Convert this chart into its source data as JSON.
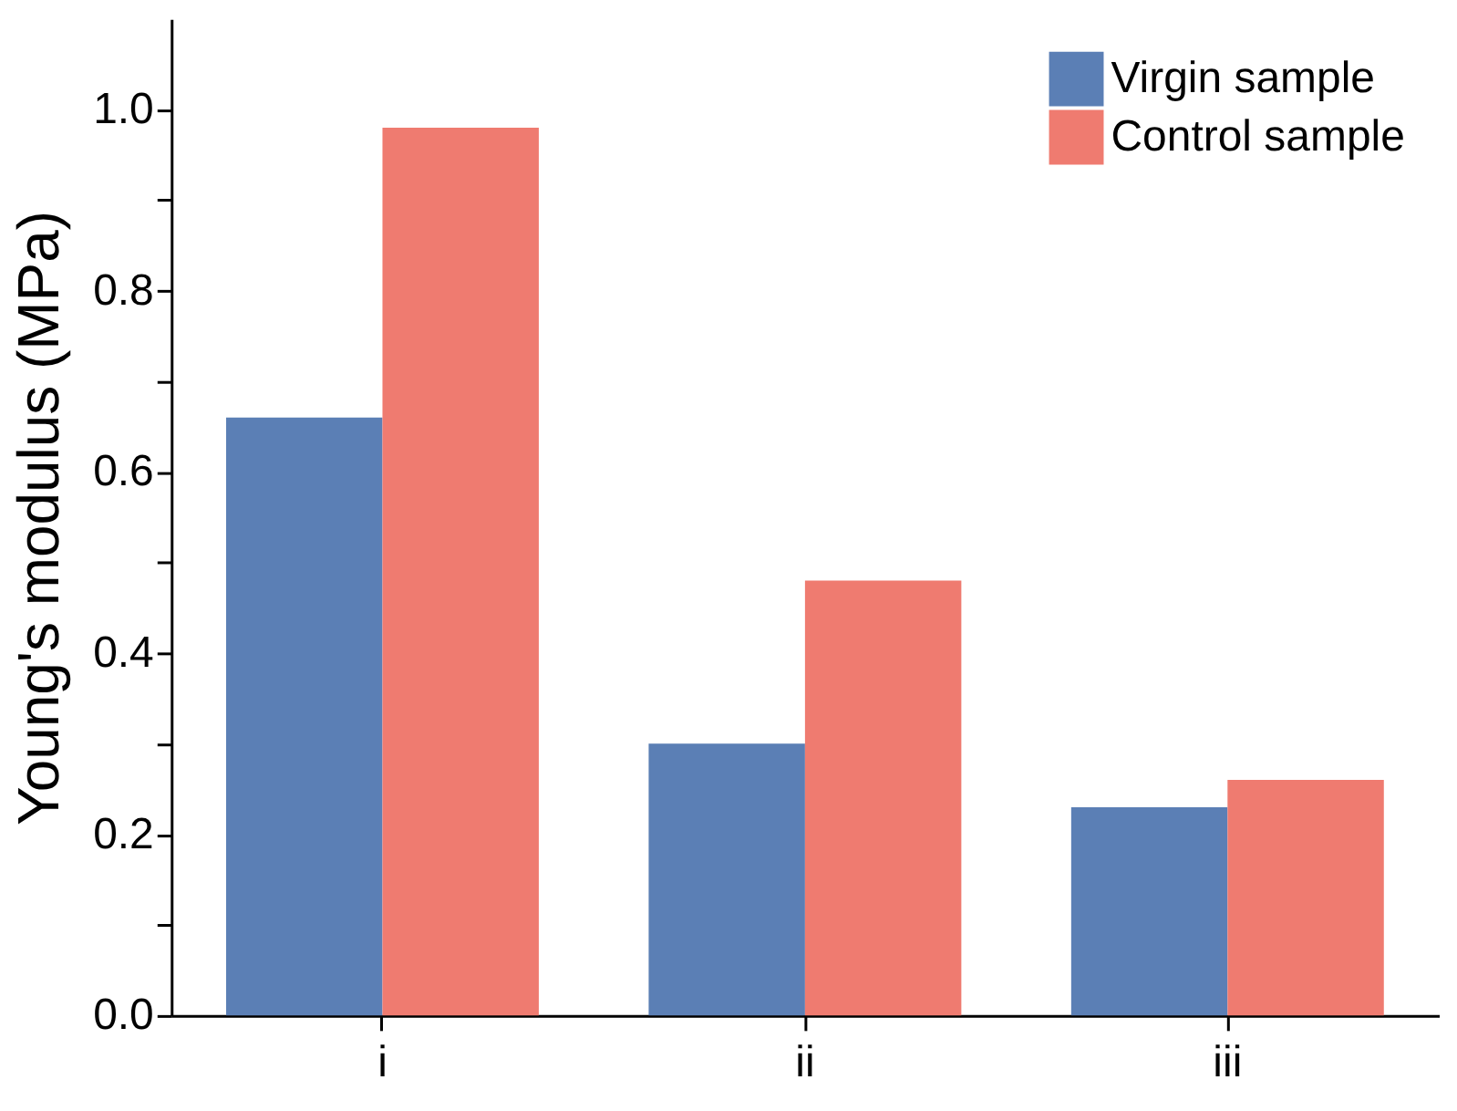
{
  "chart_data": {
    "type": "bar",
    "ylabel": "Young's modulus (MPa)",
    "categories": [
      "i",
      "ii",
      "iii"
    ],
    "series": [
      {
        "name": "Virgin sample",
        "color": "#5b7fb5",
        "values": [
          0.66,
          0.3,
          0.23
        ]
      },
      {
        "name": "Control sample",
        "color": "#ef7b70",
        "values": [
          0.98,
          0.48,
          0.26
        ]
      }
    ],
    "ylim": [
      0,
      1.1
    ],
    "yticks": [
      {
        "value": 0,
        "label": "0.0"
      },
      {
        "value": 0.1,
        "label": null
      },
      {
        "value": 0.2,
        "label": "0.2"
      },
      {
        "value": 0.3,
        "label": null
      },
      {
        "value": 0.4,
        "label": "0.4"
      },
      {
        "value": 0.5,
        "label": null
      },
      {
        "value": 0.6,
        "label": "0.6"
      },
      {
        "value": 0.7,
        "label": null
      },
      {
        "value": 0.8,
        "label": "0.8"
      },
      {
        "value": 0.9,
        "label": null
      },
      {
        "value": 1.0,
        "label": "1.0"
      }
    ],
    "legend": "top right",
    "grid": false
  }
}
